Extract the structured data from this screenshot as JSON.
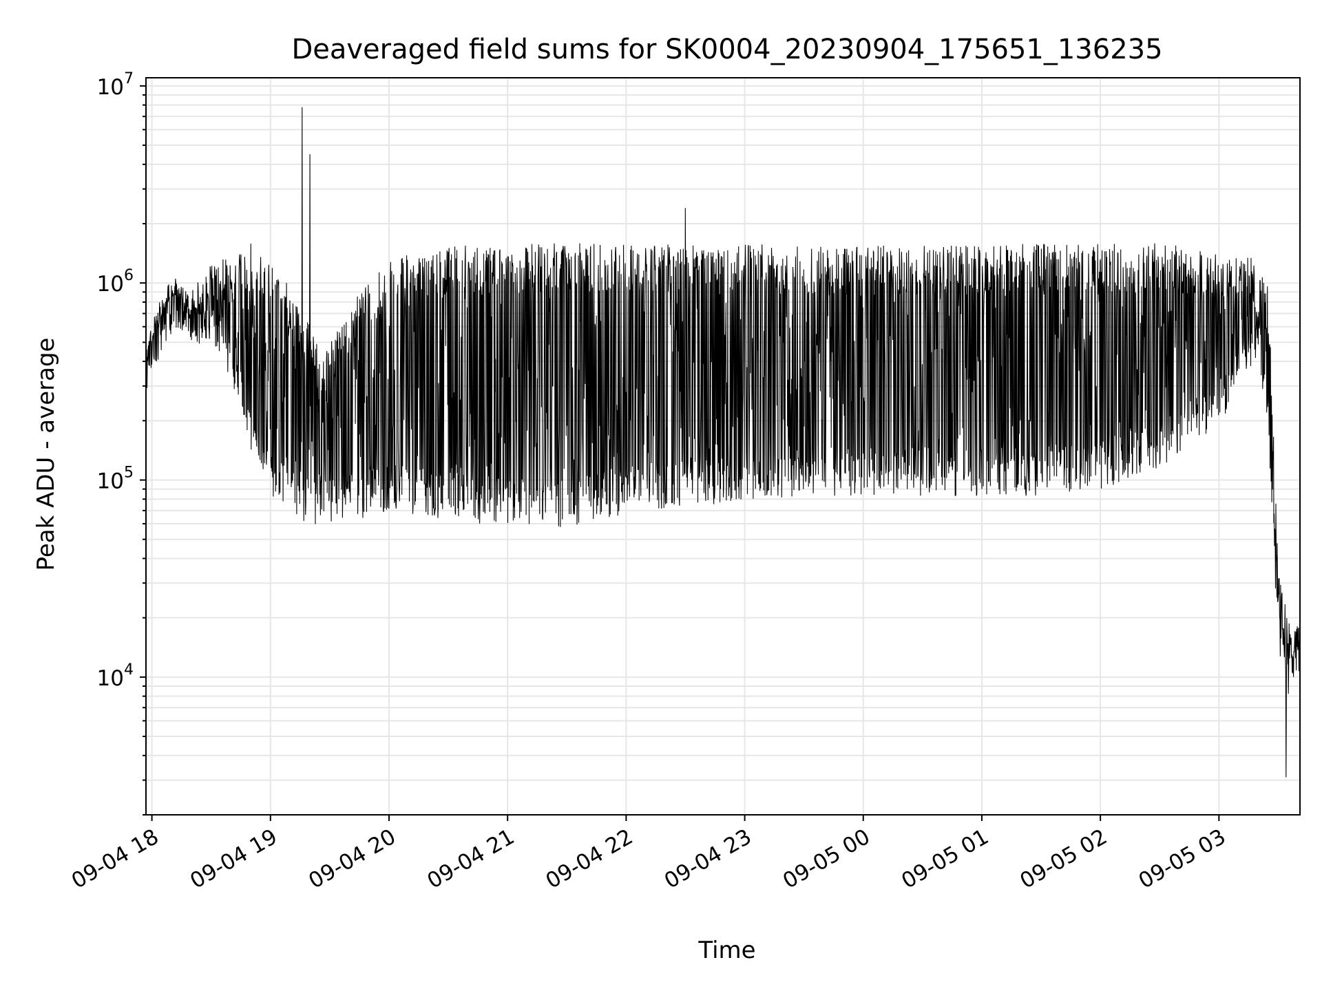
{
  "chart_data": {
    "type": "line",
    "title": "Deaveraged field sums for SK0004_20230904_175651_136235",
    "xlabel": "Time",
    "ylabel": "Peak ADU - average",
    "yscale": "log",
    "ylim": [
      2000,
      11000000
    ],
    "xlim": [
      "2023-09-04 17:57",
      "2023-09-05 03:41"
    ],
    "grid": true,
    "x_ticks": [
      {
        "t": "2023-09-04 18:00",
        "label": "09-04 18"
      },
      {
        "t": "2023-09-04 19:00",
        "label": "09-04 19"
      },
      {
        "t": "2023-09-04 20:00",
        "label": "09-04 20"
      },
      {
        "t": "2023-09-04 21:00",
        "label": "09-04 21"
      },
      {
        "t": "2023-09-04 22:00",
        "label": "09-04 22"
      },
      {
        "t": "2023-09-04 23:00",
        "label": "09-04 23"
      },
      {
        "t": "2023-09-05 00:00",
        "label": "09-05 00"
      },
      {
        "t": "2023-09-05 01:00",
        "label": "09-05 01"
      },
      {
        "t": "2023-09-05 02:00",
        "label": "09-05 02"
      },
      {
        "t": "2023-09-05 03:00",
        "label": "09-05 03"
      }
    ],
    "y_ticks": [
      {
        "value": 10000,
        "base": "10",
        "exp": "4"
      },
      {
        "value": 100000,
        "base": "10",
        "exp": "5"
      },
      {
        "value": 1000000,
        "base": "10",
        "exp": "6"
      },
      {
        "value": 10000000,
        "base": "10",
        "exp": "7"
      }
    ],
    "series": [
      {
        "color": "#000000",
        "x": [
          "2023-09-04 17:57",
          "2023-09-04 18:05",
          "2023-09-04 18:12",
          "2023-09-04 18:20",
          "2023-09-04 18:28",
          "2023-09-04 18:35",
          "2023-09-04 18:40",
          "2023-09-04 18:45",
          "2023-09-04 18:50",
          "2023-09-04 18:55",
          "2023-09-04 19:00",
          "2023-09-04 19:05",
          "2023-09-04 19:10",
          "2023-09-04 19:15",
          "2023-09-04 19:18",
          "2023-09-04 19:22",
          "2023-09-04 19:25",
          "2023-09-04 19:35",
          "2023-09-04 19:45",
          "2023-09-04 20:00",
          "2023-09-04 20:20",
          "2023-09-04 20:40",
          "2023-09-04 21:00",
          "2023-09-04 21:20",
          "2023-09-04 21:40",
          "2023-09-04 22:00",
          "2023-09-04 22:20",
          "2023-09-04 22:30",
          "2023-09-04 22:45",
          "2023-09-04 23:00",
          "2023-09-04 23:30",
          "2023-09-05 00:00",
          "2023-09-05 00:30",
          "2023-09-05 01:00",
          "2023-09-05 01:30",
          "2023-09-05 02:00",
          "2023-09-05 02:30",
          "2023-09-05 03:00",
          "2023-09-05 03:15",
          "2023-09-05 03:20",
          "2023-09-05 03:25",
          "2023-09-05 03:30",
          "2023-09-05 03:35",
          "2023-09-05 03:41"
        ],
        "base": [
          420000,
          650000,
          850000,
          600000,
          700000,
          550000,
          400000,
          250000,
          180000,
          130000,
          110000,
          100000,
          95000,
          85000,
          80000,
          75000,
          80000,
          80000,
          85000,
          90000,
          85000,
          80000,
          80000,
          75000,
          80000,
          90000,
          95000,
          100000,
          100000,
          105000,
          110000,
          110000,
          110000,
          110000,
          110000,
          120000,
          150000,
          250000,
          450000,
          600000,
          200000,
          20000,
          9000,
          15000
        ],
        "peak": [
          500000,
          800000,
          1000000,
          900000,
          1200000,
          1300000,
          1400000,
          1500000,
          1600000,
          1500000,
          1300000,
          1200000,
          900000,
          700000,
          650000,
          600000,
          400000,
          600000,
          900000,
          1300000,
          1500000,
          1550000,
          1550000,
          1600000,
          1600000,
          1600000,
          1600000,
          1600000,
          1600000,
          1600000,
          1550000,
          1550000,
          1550000,
          1550000,
          1600000,
          1600000,
          1600000,
          1500000,
          1400000,
          1200000,
          1000000,
          35000,
          20000,
          18000
        ],
        "spikes": [
          {
            "t": "2023-09-04 19:16",
            "value": 7800000
          },
          {
            "t": "2023-09-04 19:20",
            "value": 4500000
          },
          {
            "t": "2023-09-04 22:30",
            "value": 2400000
          },
          {
            "t": "2023-09-05 03:34",
            "value": 3100
          }
        ]
      }
    ]
  }
}
